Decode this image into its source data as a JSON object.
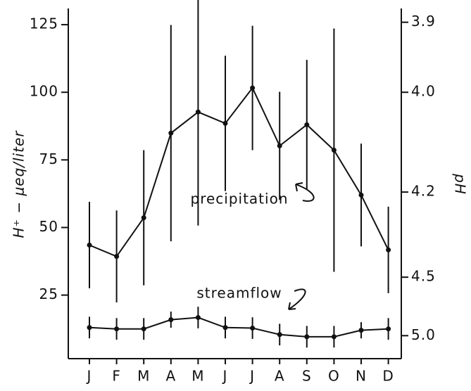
{
  "chart_data": {
    "type": "line",
    "ylabel": "H⁺ − μeq/liter",
    "y2label": "pH",
    "categories": [
      "J",
      "F",
      "M",
      "A",
      "M",
      "J",
      "J",
      "A",
      "S",
      "O",
      "N",
      "D"
    ],
    "series": [
      {
        "name": "precipitation",
        "color": "#111111",
        "values": [
          43.5,
          39.3,
          53.6,
          84.9,
          92.7,
          88.5,
          101.6,
          80.2,
          88,
          78.6,
          62,
          41.7
        ],
        "errors": [
          16,
          17,
          25,
          40,
          42,
          25,
          23,
          20,
          24,
          45,
          19,
          16
        ]
      },
      {
        "name": "streamflow",
        "color": "#111111",
        "values": [
          13,
          12.5,
          12.5,
          15.9,
          16.7,
          13,
          12.8,
          10.4,
          9.6,
          9.6,
          12,
          12.5
        ],
        "errors": [
          4,
          4,
          4,
          3,
          4,
          4,
          4,
          4,
          4,
          4,
          3,
          4
        ]
      }
    ],
    "ylim": [
      1.5,
      131
    ],
    "yticks": [
      25,
      50,
      75,
      100,
      125
    ],
    "y2scale": "pH",
    "y2ticks": [
      3.9,
      {
        "value": 4,
        "label": "4.0"
      },
      4.2,
      4.5,
      {
        "value": 5,
        "label": "5.0"
      }
    ]
  }
}
